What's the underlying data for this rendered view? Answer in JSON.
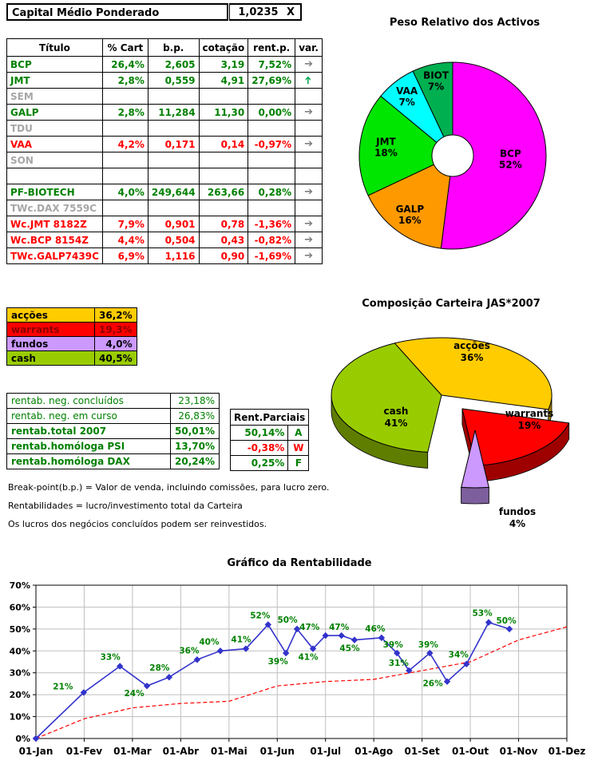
{
  "header": {
    "title": "Capital Médio Ponderado",
    "value": "1,0235",
    "unit": "X"
  },
  "positions_table": {
    "columns": [
      "Título",
      "% Cart",
      "b.p.",
      "cotação",
      "rent.p.",
      "var."
    ],
    "rows": [
      {
        "titulo": "BCP",
        "cart": "26,4%",
        "bp": "2,605",
        "cot": "3,19",
        "rent": "7,52%",
        "arrow": "right",
        "state": "gain"
      },
      {
        "titulo": "JMT",
        "cart": "2,8%",
        "bp": "0,559",
        "cot": "4,91",
        "rent": "27,69%",
        "arrow": "up",
        "state": "gain"
      },
      {
        "titulo": "SEM",
        "cart": "",
        "bp": "",
        "cot": "",
        "rent": "",
        "arrow": "",
        "state": "inactive"
      },
      {
        "titulo": "GALP",
        "cart": "2,8%",
        "bp": "11,284",
        "cot": "11,30",
        "rent": "0,00%",
        "arrow": "right",
        "state": "gain"
      },
      {
        "titulo": "TDU",
        "cart": "",
        "bp": "",
        "cot": "",
        "rent": "",
        "arrow": "",
        "state": "inactive"
      },
      {
        "titulo": "VAA",
        "cart": "4,2%",
        "bp": "0,171",
        "cot": "0,14",
        "rent": "-0,97%",
        "arrow": "right",
        "state": "loss"
      },
      {
        "titulo": "SON",
        "cart": "",
        "bp": "",
        "cot": "",
        "rent": "",
        "arrow": "",
        "state": "inactive"
      },
      {
        "titulo": "",
        "cart": "",
        "bp": "",
        "cot": "",
        "rent": "",
        "arrow": "",
        "state": "empty"
      },
      {
        "titulo": "PF-BIOTECH",
        "cart": "4,0%",
        "bp": "249,644",
        "cot": "263,66",
        "rent": "0,28%",
        "arrow": "right",
        "state": "gain"
      },
      {
        "titulo": "TWc.DAX 7559C",
        "cart": "",
        "bp": "",
        "cot": "",
        "rent": "",
        "arrow": "",
        "state": "inactive"
      },
      {
        "titulo": "Wc.JMT 8182Z",
        "cart": "7,9%",
        "bp": "0,901",
        "cot": "0,78",
        "rent": "-1,36%",
        "arrow": "right",
        "state": "loss"
      },
      {
        "titulo": "Wc.BCP 8154Z",
        "cart": "4,4%",
        "bp": "0,504",
        "cot": "0,43",
        "rent": "-0,82%",
        "arrow": "right",
        "state": "loss"
      },
      {
        "titulo": "TWc.GALP7439C",
        "cart": "6,9%",
        "bp": "1,116",
        "cot": "0,90",
        "rent": "-1,69%",
        "arrow": "right",
        "state": "loss"
      }
    ]
  },
  "allocation": {
    "rows": [
      {
        "label": "acções",
        "value": "36,2%",
        "color": "#FFCC00",
        "text": "#000000"
      },
      {
        "label": "warrants",
        "value": "19,3%",
        "color": "#FF0000",
        "text": "#8B0000"
      },
      {
        "label": "fundos",
        "value": "4,0%",
        "color": "#CC99FF",
        "text": "#000000"
      },
      {
        "label": "cash",
        "value": "40,5%",
        "color": "#99CC00",
        "text": "#000000"
      }
    ]
  },
  "returns": {
    "rows": [
      {
        "label": "rentab. neg. concluídos",
        "value": "23,18%",
        "bold": false
      },
      {
        "label": "rentab. neg. em curso",
        "value": "26,83%",
        "bold": false
      },
      {
        "label": "rentab.total 2007",
        "value": "50,01%",
        "bold": true
      },
      {
        "label": "rentab.homóloga PSI",
        "value": "13,70%",
        "bold": true
      },
      {
        "label": "rentab.homóloga DAX",
        "value": "20,24%",
        "bold": true
      }
    ]
  },
  "partials": {
    "title": "Rent.Parciais",
    "rows": [
      {
        "value": "50,14%",
        "code": "A",
        "state": "gain"
      },
      {
        "value": "-0,38%",
        "code": "W",
        "state": "loss"
      },
      {
        "value": "0,25%",
        "code": "F",
        "state": "gain"
      }
    ]
  },
  "footnotes": [
    "Break-point(b.p.) = Valor de venda, incluindo comissões, para lucro zero.",
    "Rentabilidades = lucro/investimento total da Carteira",
    "Os lucros dos negócios concluídos podem ser reinvestidos."
  ],
  "chart_data": [
    {
      "type": "pie",
      "title": "Peso Relativo dos Activos",
      "donut": true,
      "start_angle": 0,
      "labels": [
        "BCP",
        "GALP",
        "JMT",
        "VAA",
        "BIOT"
      ],
      "values": [
        52,
        16,
        18,
        7,
        7
      ],
      "colors": [
        "#FF00FF",
        "#FF9900",
        "#00E600",
        "#00FFFF",
        "#00B050"
      ],
      "label_r": [
        0.62,
        0.78,
        0.72,
        0.8,
        0.82
      ]
    },
    {
      "type": "pie",
      "variant": "3d-exploded",
      "title": "Composição Carteira JAS*2007",
      "start_angle": -25.2,
      "labels": [
        "acções",
        "warrants",
        "fundos",
        "cash"
      ],
      "values": [
        36,
        19,
        4,
        41
      ],
      "colors": [
        "#FFCC00",
        "#FF0000",
        "#CC99FF",
        "#99CC00"
      ],
      "explode": [
        [
          0,
          0
        ],
        [
          26,
          17
        ],
        [
          42,
          44
        ],
        [
          0,
          0
        ]
      ],
      "label_pos": [
        [
          38,
          -58
        ],
        [
          110,
          27
        ],
        [
          95,
          150
        ],
        [
          -57,
          24
        ]
      ]
    },
    {
      "type": "line",
      "title": "Gráfico da Rentabilidade",
      "x_ticks": [
        "01-Jan",
        "01-Fev",
        "01-Mar",
        "01-Abr",
        "01-Mai",
        "01-Jun",
        "01-Jul",
        "01-Ago",
        "01-Set",
        "01-Out",
        "01-Nov",
        "01-Dez"
      ],
      "ylim": [
        0,
        70
      ],
      "y_tick_step": 10,
      "y_tick_suffix": "%",
      "grid": true,
      "series": [
        {
          "name": "rentabilidade",
          "color": "#3333CC",
          "marker": "diamond",
          "label_color": "#008000",
          "points": [
            {
              "m": 0.0,
              "v": 0
            },
            {
              "m": 0.99,
              "v": 21,
              "label": "21%",
              "dx": -26,
              "dy": -4
            },
            {
              "m": 1.74,
              "v": 33,
              "label": "33%",
              "dx": -12,
              "dy": -8
            },
            {
              "m": 2.3,
              "v": 24,
              "label": "24%",
              "dx": -16,
              "dy": 13
            },
            {
              "m": 2.76,
              "v": 28,
              "label": "28%",
              "dx": -12,
              "dy": -8
            },
            {
              "m": 3.34,
              "v": 36,
              "label": "36%",
              "dx": -10,
              "dy": -8
            },
            {
              "m": 3.82,
              "v": 40,
              "label": "40%",
              "dx": -14,
              "dy": -8
            },
            {
              "m": 4.35,
              "v": 41,
              "label": "41%",
              "dx": -6,
              "dy": -8
            },
            {
              "m": 4.81,
              "v": 52,
              "label": "52%",
              "dx": -10,
              "dy": -8
            },
            {
              "m": 5.18,
              "v": 39,
              "label": "39%",
              "dx": -10,
              "dy": 14
            },
            {
              "m": 5.41,
              "v": 50,
              "label": "50%",
              "dx": -12,
              "dy": -8
            },
            {
              "m": 5.74,
              "v": 41,
              "label": "41%",
              "dx": -6,
              "dy": 14
            },
            {
              "m": 6.0,
              "v": 47,
              "label": "47%",
              "dx": -20,
              "dy": -7
            },
            {
              "m": 6.33,
              "v": 47,
              "label": "47%",
              "dx": -3,
              "dy": -7
            },
            {
              "m": 6.6,
              "v": 45,
              "label": "45%",
              "dx": -6,
              "dy": 14
            },
            {
              "m": 7.16,
              "v": 46,
              "label": "46%",
              "dx": -8,
              "dy": -8
            },
            {
              "m": 7.48,
              "v": 39,
              "label": "39%",
              "dx": -5,
              "dy": -7
            },
            {
              "m": 7.73,
              "v": 31,
              "label": "31%",
              "dx": -13,
              "dy": -6
            },
            {
              "m": 8.16,
              "v": 39,
              "label": "39%",
              "dx": -2,
              "dy": -7
            },
            {
              "m": 8.52,
              "v": 26,
              "label": "26%",
              "dx": -18,
              "dy": 6
            },
            {
              "m": 8.92,
              "v": 34,
              "label": "34%",
              "dx": -10,
              "dy": -8
            },
            {
              "m": 9.38,
              "v": 53,
              "label": "53%",
              "dx": -8,
              "dy": -8
            },
            {
              "m": 9.81,
              "v": 50,
              "label": "50%",
              "dx": -4,
              "dy": -7
            }
          ]
        },
        {
          "name": "benchmark",
          "color": "#FF0000",
          "dashed": true,
          "values_by_month": [
            0,
            9,
            14,
            16,
            17,
            24,
            26,
            27,
            31,
            35,
            45,
            51
          ]
        }
      ]
    }
  ]
}
